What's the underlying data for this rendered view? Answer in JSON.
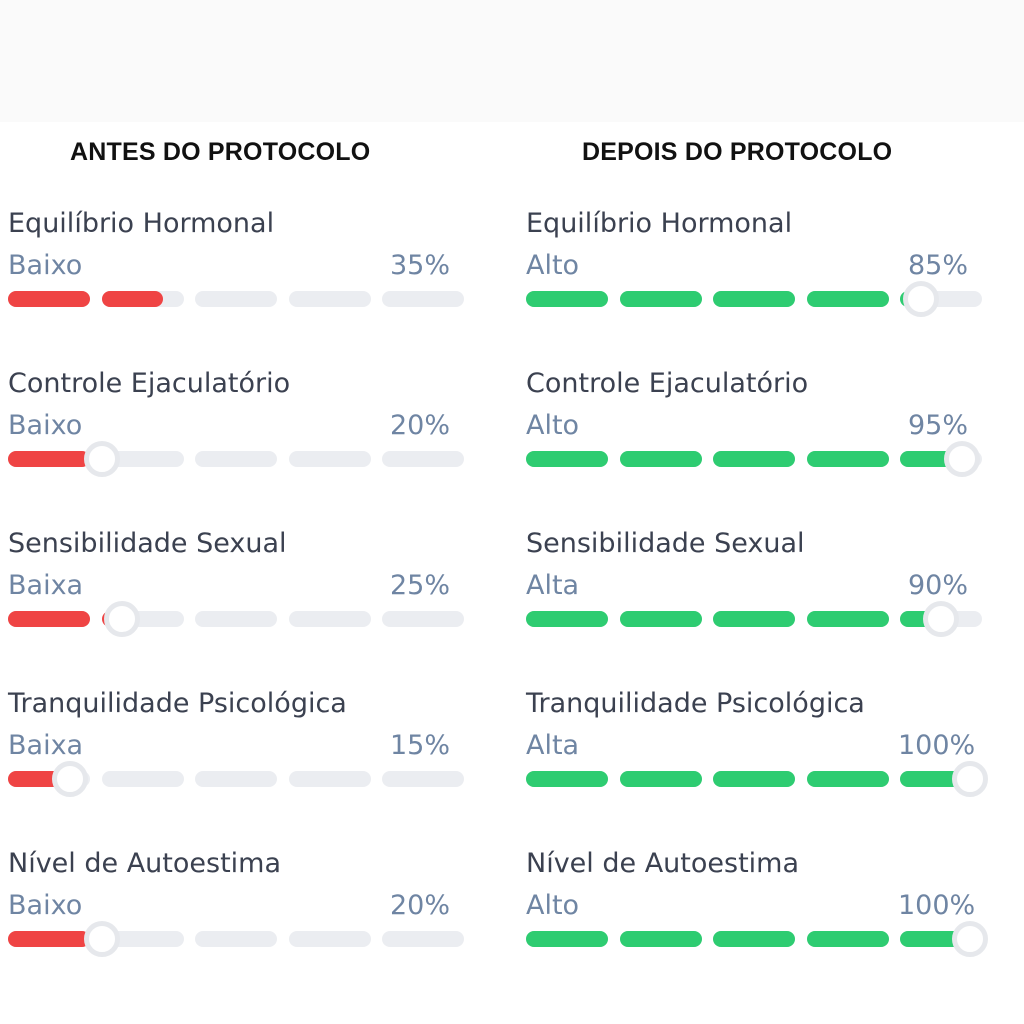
{
  "colors": {
    "before_fill": "#ef4444",
    "after_fill": "#2ecc71",
    "track": "#ebedf1"
  },
  "columns": [
    {
      "title": "ANTES DO PROTOCOLO",
      "metrics": [
        {
          "name": "Equilíbrio Hormonal",
          "level": "Baixo",
          "value_label": "35%",
          "value": 35,
          "knob": false
        },
        {
          "name": "Controle Ejaculatório",
          "level": "Baixo",
          "value_label": "20%",
          "value": 20,
          "knob": true
        },
        {
          "name": "Sensibilidade Sexual",
          "level": "Baixa",
          "value_label": "25%",
          "value": 25,
          "knob": true
        },
        {
          "name": "Tranquilidade Psicológica",
          "level": "Baixa",
          "value_label": "15%",
          "value": 15,
          "knob": true
        },
        {
          "name": "Nível de Autoestima",
          "level": "Baixo",
          "value_label": "20%",
          "value": 20,
          "knob": true
        }
      ]
    },
    {
      "title": "DEPOIS DO PROTOCOLO",
      "metrics": [
        {
          "name": "Equilíbrio Hormonal",
          "level": "Alto",
          "value_label": "85%",
          "value": 85,
          "knob": true
        },
        {
          "name": "Controle Ejaculatório",
          "level": "Alto",
          "value_label": "95%",
          "value": 95,
          "knob": true
        },
        {
          "name": "Sensibilidade Sexual",
          "level": "Alta",
          "value_label": "90%",
          "value": 90,
          "knob": true
        },
        {
          "name": "Tranquilidade Psicológica",
          "level": "Alta",
          "value_label": "100%",
          "value": 100,
          "knob": true
        },
        {
          "name": "Nível de Autoestima",
          "level": "Alto",
          "value_label": "100%",
          "value": 100,
          "knob": true
        }
      ]
    }
  ]
}
